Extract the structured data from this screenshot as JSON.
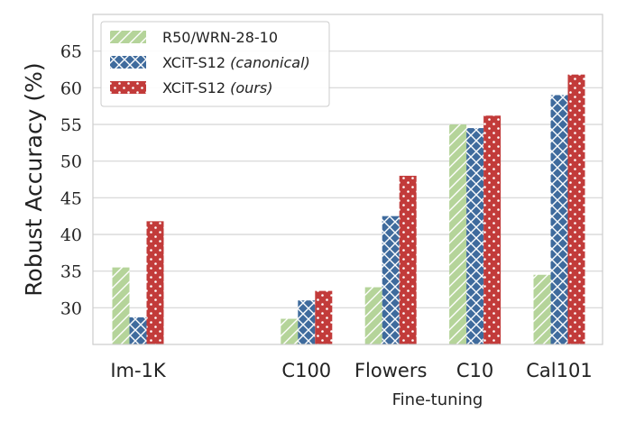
{
  "chart_data": {
    "type": "bar",
    "categories": [
      "Im-1K",
      "C100",
      "Flowers",
      "C10",
      "Cal101"
    ],
    "category_slots": [
      0,
      2,
      3,
      4,
      5
    ],
    "series": [
      {
        "name": "R50/WRN-28-10",
        "name_italic": "",
        "color": "#b5d49a",
        "pattern": "diagonal-hatch",
        "values": [
          35.5,
          28.5,
          32.8,
          55.0,
          34.5
        ]
      },
      {
        "name": "XCiT-S12",
        "name_italic": "(canonical)",
        "color": "#3f6b9d",
        "pattern": "cross-hatch",
        "values": [
          28.7,
          31.0,
          42.5,
          54.5,
          59.0
        ]
      },
      {
        "name": "XCiT-S12",
        "name_italic": "(ours)",
        "color": "#c23b3a",
        "pattern": "dots",
        "values": [
          41.8,
          32.3,
          48.0,
          56.2,
          61.8
        ]
      }
    ],
    "ylabel": "Robust Accuracy (%)",
    "x_group_label": "Fine-tuning",
    "yticks": [
      30,
      35,
      40,
      45,
      50,
      55,
      60,
      65
    ],
    "ylim": [
      25,
      70
    ],
    "grid": true,
    "legend": "top-left"
  }
}
